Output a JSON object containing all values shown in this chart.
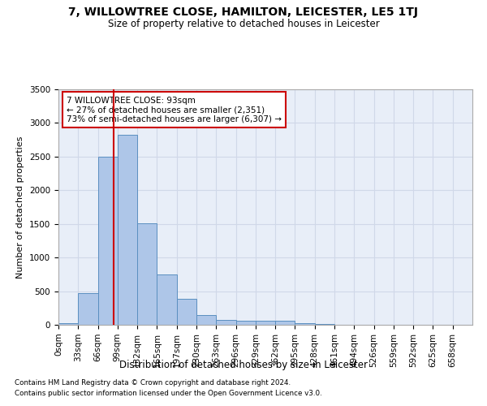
{
  "title": "7, WILLOWTREE CLOSE, HAMILTON, LEICESTER, LE5 1TJ",
  "subtitle": "Size of property relative to detached houses in Leicester",
  "xlabel": "Distribution of detached houses by size in Leicester",
  "ylabel": "Number of detached properties",
  "bin_labels": [
    "0sqm",
    "33sqm",
    "66sqm",
    "99sqm",
    "132sqm",
    "165sqm",
    "197sqm",
    "230sqm",
    "263sqm",
    "296sqm",
    "329sqm",
    "362sqm",
    "395sqm",
    "428sqm",
    "461sqm",
    "494sqm",
    "526sqm",
    "559sqm",
    "592sqm",
    "625sqm",
    "658sqm"
  ],
  "bar_values": [
    30,
    475,
    2500,
    2820,
    1510,
    750,
    390,
    140,
    75,
    55,
    55,
    55,
    30,
    10,
    5,
    0,
    0,
    0,
    0,
    0,
    0
  ],
  "bar_color": "#aec6e8",
  "bar_edge_color": "#5a8fc0",
  "property_sqm": 93,
  "red_line_color": "#cc0000",
  "annotation_text": "7 WILLOWTREE CLOSE: 93sqm\n← 27% of detached houses are smaller (2,351)\n73% of semi-detached houses are larger (6,307) →",
  "annotation_box_color": "#ffffff",
  "annotation_box_edge": "#cc0000",
  "ylim": [
    0,
    3500
  ],
  "yticks": [
    0,
    500,
    1000,
    1500,
    2000,
    2500,
    3000,
    3500
  ],
  "grid_color": "#d0d8e8",
  "bg_color": "#e8eef8",
  "footer1": "Contains HM Land Registry data © Crown copyright and database right 2024.",
  "footer2": "Contains public sector information licensed under the Open Government Licence v3.0."
}
